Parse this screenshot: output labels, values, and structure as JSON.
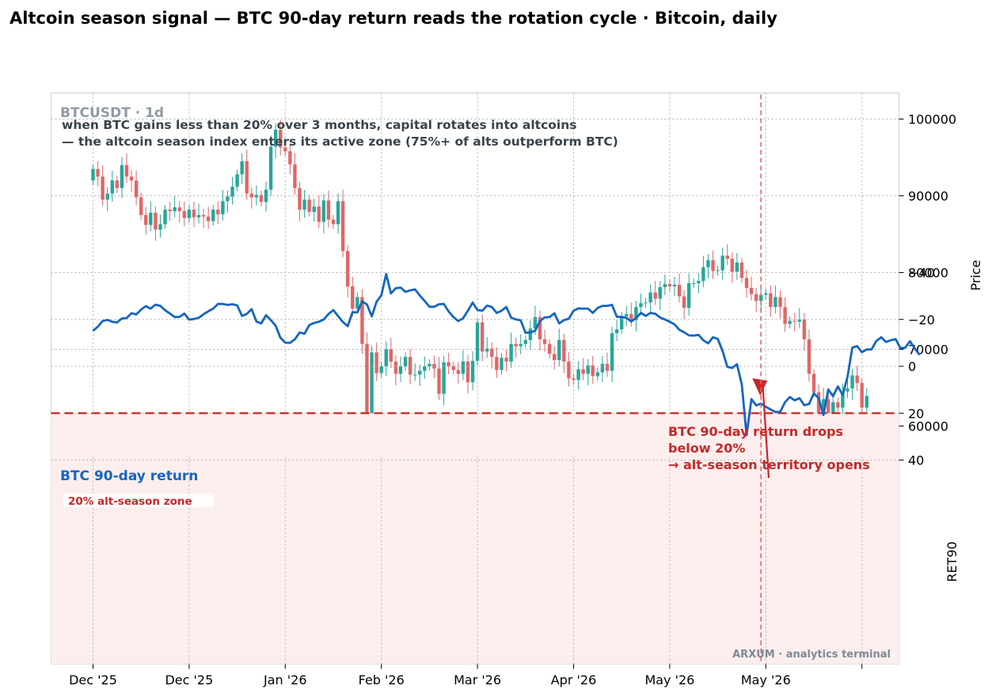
{
  "title": "Altcoin season signal — BTC 90-day return reads the rotation cycle  ·  Bitcoin, daily",
  "symbol_label": "BTCUSDT · 1d",
  "subtitle_lines": [
    "when BTC gains less than 20% over 3 months, capital rotates into altcoins",
    "— the altcoin season index enters its active zone (75%+ of alts outperform BTC)"
  ],
  "watermark": "ARXUM · analytics terminal",
  "colors": {
    "up": "#26a69a",
    "down": "#e06666",
    "line": "#1565c0",
    "threshold": "#c62828",
    "zone_fill": "#fdeeee",
    "grid": "#b0b0b0"
  },
  "chart_data": [
    {
      "type": "candlestick",
      "ylabel": "Price",
      "ylim": [
        57500,
        103500
      ],
      "yticks": [
        60000,
        70000,
        80000,
        90000,
        100000
      ],
      "x_tick_labels": [
        "Dec '25",
        "Dec '25",
        "Jan '26",
        "Feb '26",
        "Mar '26",
        "Apr '26",
        "May '26",
        "May '26",
        ""
      ],
      "x_tick_day_index": [
        0,
        20,
        40,
        60,
        80,
        100,
        120,
        140,
        160
      ],
      "grid": true,
      "candle_start_day": 0,
      "close": [
        93500,
        92500,
        89500,
        90300,
        92000,
        91000,
        94000,
        92500,
        92000,
        89800,
        87500,
        86200,
        87800,
        85600,
        86300,
        88200,
        88000,
        88500,
        88000,
        87100,
        88200,
        87200,
        87500,
        87300,
        86700,
        88200,
        87600,
        89300,
        89900,
        91200,
        92800,
        94500,
        90300,
        89800,
        90100,
        89200,
        90800,
        96400,
        98600,
        96300,
        95800,
        94100,
        91000,
        88200,
        89500,
        87900,
        88600,
        86600,
        89400,
        86900,
        86300,
        89300,
        82800,
        78200,
        75300,
        76800,
        70700,
        60300,
        69600,
        66900,
        67800,
        70000,
        68400,
        66800,
        67800,
        69000,
        66700,
        66700,
        67200,
        67800,
        68100,
        67500,
        64200,
        68300,
        67800,
        67300,
        66800,
        68400,
        65700,
        68500,
        73500,
        69700,
        70100,
        69000,
        67300,
        68900,
        68400,
        70700,
        70400,
        70700,
        71200,
        72700,
        74200,
        71300,
        70700,
        69400,
        68600,
        71200,
        68400,
        66200,
        66000,
        67400,
        66800,
        67900,
        66500,
        67000,
        68100,
        67200,
        72100,
        72600,
        74300,
        74600,
        73800,
        75500,
        76000,
        76100,
        77400,
        76600,
        78100,
        78500,
        78200,
        78400,
        76900,
        75400,
        78600,
        78600,
        78900,
        80700,
        81600,
        80200,
        80300,
        82200,
        81800,
        80100,
        81300,
        79300,
        78000,
        77200,
        76300,
        77100,
        77300,
        75500,
        76800,
        75500,
        73300,
        73700,
        73600,
        73900,
        71300,
        66800,
        64400,
        61200,
        63500,
        60800,
        63100,
        62400,
        64500,
        64900,
        66600,
        65600,
        62400,
        63900
      ]
    },
    {
      "type": "line",
      "title": "BTC 90-day return",
      "ylabel": "RET90",
      "ylim": [
        -46,
        40
      ],
      "yticks": [
        -40,
        -20,
        0,
        20,
        40
      ],
      "threshold": 20,
      "threshold_label": "20%  alt-season zone",
      "zone": [
        -46,
        20
      ],
      "annotation": {
        "lines": [
          "BTC 90-day return drops",
          "below 20%",
          "→ alt-season territory opens"
        ],
        "day_index": 139,
        "value": 8.5
      },
      "x_tick_labels": [
        "Dec '25",
        "Dec '25",
        "Jan '26",
        "Feb '26",
        "Mar '26",
        "Apr '26",
        "May '26",
        "May '26",
        ""
      ],
      "x_tick_day_index": [
        0,
        20,
        40,
        60,
        80,
        100,
        120,
        140,
        160
      ],
      "grid": true,
      "series": [
        {
          "start_day": 0,
          "values": [
            -15.2,
            -16.9,
            -19.3,
            -19.8,
            -19.0,
            -18.7,
            -20.4,
            -20.6,
            -22.7,
            -22.1,
            -24.2,
            -25.7,
            -24.6,
            -26.3,
            -25.8,
            -23.9,
            -22.5,
            -21.0,
            -21.1,
            -22.5,
            -19.9,
            -20.2,
            -20.7,
            -22.2,
            -23.5,
            -24.6,
            -26.6,
            -26.6,
            -26.2,
            -26.5,
            -26.0,
            -21.5,
            -22.3,
            -24.4,
            -19.1,
            -18.3,
            -21.8,
            -19.7,
            -17.3,
            -12.2,
            -10.1,
            -10.0,
            -11.5,
            -14.4,
            -13.9,
            -17.6,
            -18.5,
            -19.0,
            -20.0,
            -22.3,
            -24.0,
            -21.4,
            -18.9,
            -17.1,
            -23.1,
            -23.0,
            -27.7,
            -26.4,
            -21.3,
            -27.5,
            -30.3,
            -39.4,
            -31.1,
            -33.3,
            -33.6,
            -31.8,
            -32.4,
            -32.8,
            -30.2,
            -27.9,
            -25.4,
            -25.4,
            -26.5,
            -26.6,
            -23.4,
            -21.0,
            -19.3,
            -20.5,
            -23.7,
            -27.2,
            -24.0,
            -23.7,
            -25.9,
            -25.3,
            -22.8,
            -23.7,
            -25.3,
            -20.8,
            -20.0,
            -19.6,
            -14.3,
            -14.4,
            -15.2,
            -19.3,
            -20.9,
            -21.0,
            -22.6,
            -18.3,
            -19.7,
            -20.3,
            -23.7,
            -24.7,
            -24.6,
            -24.6,
            -22.8,
            -24.9,
            -25.8,
            -25.8,
            -26.2,
            -21.1,
            -21.1,
            -20.7,
            -19.1,
            -20.6,
            -22.8,
            -21.5,
            -22.8,
            -22.4,
            -20.8,
            -20.0,
            -19.0,
            -17.9,
            -15.6,
            -14.5,
            -13.2,
            -13.1,
            -13.4,
            -11.1,
            -9.8,
            -12.4,
            -11.7,
            -6.5,
            0.2,
            0.7,
            -0.9,
            7.8,
            29.4,
            14.0,
            16.7,
            15.9,
            17.3,
            18.4,
            19.5,
            19.4,
            15.3,
            13.1,
            14.5,
            13.6,
            16.6,
            16.1,
            11.5,
            13.6,
            20.8,
            9.9,
            12.8,
            8.6,
            12.2,
            4.5,
            -8.0,
            -8.6,
            -6.0,
            -7.2,
            -7.2,
            -10.8,
            -12.4,
            -10.4,
            -11.1,
            -11.6,
            -7.8,
            -7.9,
            -10.7,
            -7.6,
            -4.9
          ]
        }
      ]
    }
  ]
}
